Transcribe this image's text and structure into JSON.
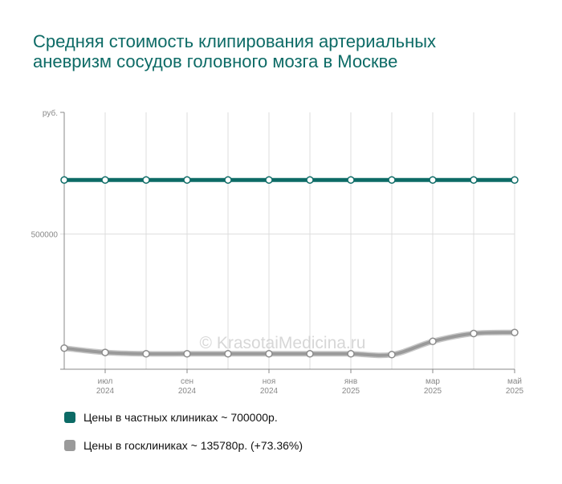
{
  "title": "Средняя стоимость клипирования артериальных аневризм сосудов головного мозга в Москве",
  "watermark": "© KrasotaiMedicina.ru",
  "chart_data": {
    "type": "line",
    "y_unit_label": "руб.",
    "ylim": [
      0,
      950000
    ],
    "yticks": [
      {
        "value": 500000,
        "label": "500000"
      }
    ],
    "x": [
      0,
      1,
      2,
      3,
      4,
      5,
      6,
      7,
      8,
      9,
      10,
      11
    ],
    "xticks": [
      {
        "index": 1,
        "month": "июл",
        "year": "2024"
      },
      {
        "index": 3,
        "month": "сен",
        "year": "2024"
      },
      {
        "index": 5,
        "month": "ноя",
        "year": "2024"
      },
      {
        "index": 7,
        "month": "янв",
        "year": "2025"
      },
      {
        "index": 9,
        "month": "мар",
        "year": "2025"
      },
      {
        "index": 11,
        "month": "май",
        "year": "2025"
      }
    ],
    "grid": true,
    "series": [
      {
        "name": "Цены в частных клиниках ~ 700000р.",
        "color": "#0d6b66",
        "values": [
          700000,
          700000,
          700000,
          700000,
          700000,
          700000,
          700000,
          700000,
          700000,
          700000,
          700000,
          700000
        ]
      },
      {
        "name": "Цены в госклиниках ~ 135780р. (+73.36%)",
        "color": "#9a9a9a",
        "values": [
          78000,
          62000,
          57000,
          57000,
          57000,
          57000,
          57000,
          57000,
          54000,
          103000,
          132000,
          135780
        ]
      }
    ],
    "legend_position": "bottom-left"
  }
}
